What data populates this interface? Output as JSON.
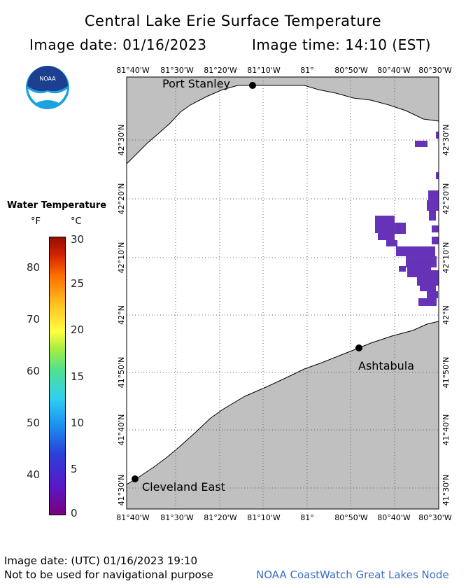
{
  "header": {
    "title": "Central Lake Erie Surface Temperature",
    "image_date": "Image date: 01/16/2023",
    "image_time": "Image time: 14:10 (EST)"
  },
  "logo": {
    "text": "NOAA"
  },
  "map": {
    "lon_labels": [
      "81°40'W",
      "81°30'W",
      "81°20'W",
      "81°10'W",
      "81°",
      "80°50'W",
      "80°40'W",
      "80°30'W"
    ],
    "lat_labels": [
      "42°30'N",
      "42°20'N",
      "42°10'N",
      "42°N",
      "41°50'N",
      "41°40'N",
      "41°30'N"
    ],
    "places": {
      "port_stanley": "Port Stanley",
      "ashtabula": "Ashtabula",
      "cleveland": "Cleveland East"
    },
    "colors": {
      "land": "#c0c0c0",
      "water": "#ffffff",
      "cold_water": "#6633b8"
    }
  },
  "legend": {
    "title": "Water Temperature",
    "unit_f": "°F",
    "unit_c": "°C",
    "f_ticks": [
      "80",
      "70",
      "60",
      "50",
      "40"
    ],
    "c_ticks": [
      "30",
      "25",
      "20",
      "15",
      "10",
      "5",
      "0"
    ]
  },
  "footer": {
    "utc_date": "Image date: (UTC) 01/16/2023  19:10",
    "navigation_note": "Not to be used for navigational purpose",
    "credit": "NOAA CoastWatch Great Lakes Node"
  }
}
